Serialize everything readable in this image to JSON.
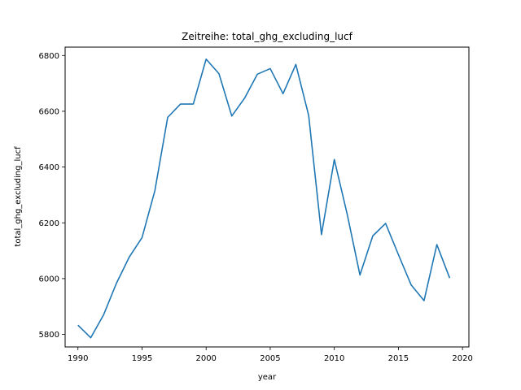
{
  "chart_data": {
    "type": "line",
    "title": "Zeitreihe: total_ghg_excluding_lucf",
    "xlabel": "year",
    "ylabel": "total_ghg_excluding_lucf",
    "xlim": [
      1989.0,
      2020.5
    ],
    "ylim": [
      5755,
      6830
    ],
    "x_ticks": [
      1990,
      1995,
      2000,
      2005,
      2010,
      2015,
      2020
    ],
    "y_ticks": [
      5800,
      6000,
      6200,
      6400,
      6600,
      6800
    ],
    "grid": false,
    "line_color": "#1f77b4",
    "series": [
      {
        "x": [
          1990,
          1991,
          1992,
          1993,
          1994,
          1995,
          1996,
          1997,
          1998,
          1999,
          2000,
          2001,
          2002,
          2003,
          2004,
          2005,
          2006,
          2007,
          2008,
          2009,
          2010,
          2011,
          2012,
          2013,
          2014,
          2015,
          2016,
          2017,
          2018,
          2019
        ],
        "values": [
          5833,
          5788,
          5870,
          5983,
          6077,
          6147,
          6315,
          6578,
          6626,
          6626,
          6787,
          6735,
          6583,
          6647,
          6733,
          6753,
          6663,
          6768,
          6585,
          6158,
          6427,
          6232,
          6013,
          6153,
          6198,
          6086,
          5977,
          5921,
          6122,
          6002
        ]
      }
    ]
  }
}
